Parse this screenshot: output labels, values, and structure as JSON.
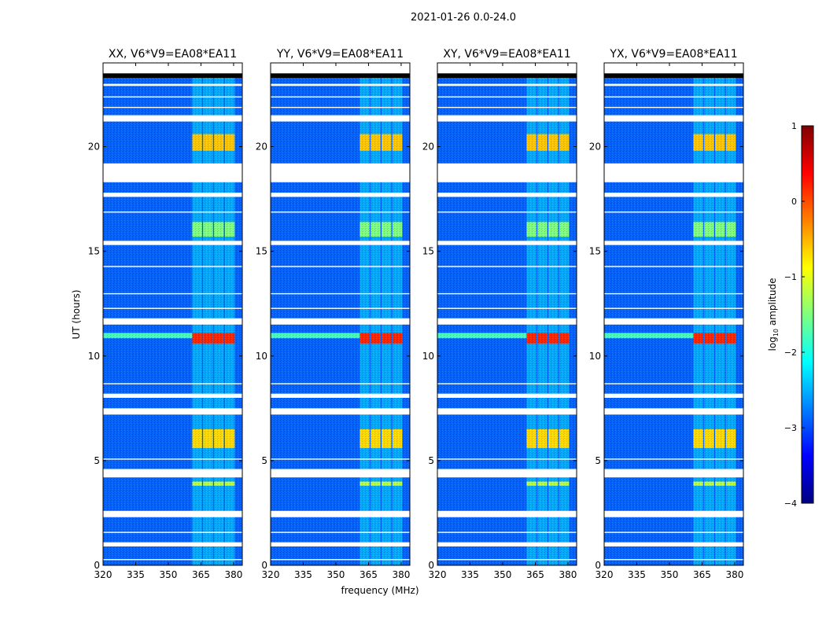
{
  "chart_data": {
    "type": "heatmap",
    "suptitle": "2021-01-26 0.0-24.0",
    "xlabel": "frequency (MHz)",
    "ylabel": "UT (hours)",
    "xlim": [
      320,
      384
    ],
    "ylim": [
      0,
      24
    ],
    "x_ticks": [
      320,
      335,
      350,
      365,
      380
    ],
    "y_ticks": [
      0,
      5,
      10,
      15,
      20
    ],
    "colorbar": {
      "label_prefix": "log",
      "label_sub": "10",
      "label_suffix": " amplitude",
      "range": [
        -4,
        1
      ],
      "ticks": [
        "1",
        "0",
        "−1",
        "−2",
        "−3",
        "−4"
      ],
      "tick_values": [
        1,
        0,
        -1,
        -2,
        -3,
        -4
      ]
    },
    "panels": [
      {
        "title": "XX, V6*V9=EA08*EA11"
      },
      {
        "title": "YY, V6*V9=EA08*EA11"
      },
      {
        "title": "XY, V6*V9=EA08*EA11"
      },
      {
        "title": "YX, V6*V9=EA08*EA11"
      }
    ],
    "noise_level": -2.9,
    "rfi_channels": [
      {
        "f0": 361,
        "f1": 365.5
      },
      {
        "f0": 366,
        "f1": 370.5
      },
      {
        "f0": 371,
        "f1": 375.5
      },
      {
        "f0": 376,
        "f1": 380.5
      }
    ],
    "rfi_bursts": [
      {
        "t0": 19.8,
        "t1": 20.6,
        "level": -0.6
      },
      {
        "t0": 10.6,
        "t1": 11.1,
        "level": 0.2
      },
      {
        "t0": 5.6,
        "t1": 6.5,
        "level": -0.7
      },
      {
        "t0": 15.7,
        "t1": 16.4,
        "level": -1.5
      },
      {
        "t0": 3.8,
        "t1": 4.0,
        "level": -1.2
      }
    ],
    "blank_bands": [
      [
        23.5,
        24.0
      ],
      [
        22.9,
        23.0
      ],
      [
        21.2,
        21.5
      ],
      [
        18.3,
        19.2
      ],
      [
        17.6,
        17.8
      ],
      [
        15.3,
        15.5
      ],
      [
        11.5,
        11.8
      ],
      [
        8.0,
        8.2
      ],
      [
        7.2,
        7.5
      ],
      [
        4.2,
        4.6
      ],
      [
        2.3,
        2.6
      ],
      [
        0.9,
        1.1
      ]
    ],
    "gap_lines": [
      22.4,
      21.9,
      16.9,
      14.3,
      13.0,
      12.3,
      8.7,
      5.1,
      1.6,
      0.3
    ]
  }
}
